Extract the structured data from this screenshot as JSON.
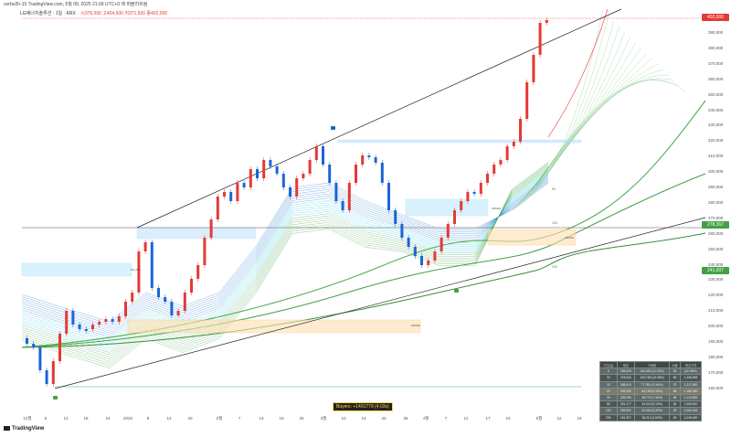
{
  "topbar": {
    "text": "ovrbo2h-15 TradingView.com, 5월 09, 2025 21:09 UTC+9 에 퍼블리쉬됨"
  },
  "legend": {
    "symbol": "LG에너지솔루션 · 1일 · KRX",
    "ohlc": "시376,000 고404,500 저371,500 종402,000"
  },
  "price_labels": {
    "last": "402,000",
    "ma_upper": "278,367",
    "ma_lower": "241,607"
  },
  "y_axis_ticks": [
    "390,000",
    "380,000",
    "370,000",
    "360,000",
    "350,000",
    "340,000",
    "330,000",
    "320,000",
    "310,000",
    "300,000",
    "290,000",
    "280,000",
    "270,000",
    "260,000",
    "250,000",
    "240,000",
    "230,000",
    "220,000",
    "210,000",
    "200,000",
    "190,000",
    "180,000",
    "170,000",
    "160,000"
  ],
  "x_axis_ticks": [
    "12월",
    "6",
    "12",
    "18",
    "24",
    "2025",
    "8",
    "14",
    "20",
    "2월",
    "7",
    "13",
    "19",
    "25",
    "3월",
    "10",
    "14",
    "20",
    "26",
    "4월",
    "7",
    "11",
    "17",
    "23",
    "5월",
    "12",
    "16",
    "22",
    "6월",
    "9",
    "13",
    "19"
  ],
  "annotations": {
    "buyers": "Buyers: +1401779 (4.03x)",
    "ma_labels": [
      "100",
      "200",
      "50"
    ],
    "box_labels": [
      "266000",
      "256000",
      "261,000",
      "296000",
      "256000"
    ]
  },
  "table": {
    "header": [
      "기간(일)",
      "평균",
      "거래량",
      "비율",
      "평균가격"
    ],
    "rows": [
      [
        "5",
        "394,625",
        "140,552 (21.03%)",
        "90",
        "(20.08%)"
      ],
      [
        "10",
        "378,640",
        "100,768 (15.08%)",
        "80",
        "1,208,595"
      ],
      [
        "15",
        "358,610",
        "77,780 (11.64%)",
        "70",
        "1,217,830"
      ],
      [
        "20",
        "343,050",
        "62,156 (9.30%)",
        "65",
        "1,185,480"
      ],
      [
        "30",
        "325,290",
        "48,774 (7.30%)",
        "55",
        "1,114,955"
      ],
      [
        "50",
        "301,177",
        "34,315 (5.13%)",
        "50",
        "1,083,510"
      ],
      [
        "100",
        "283,931",
        "22,040 (3.30%)",
        "45",
        "1,062,445"
      ],
      [
        "200",
        "261,907",
        "18,912 (2.83%)",
        "45",
        "1,045,490"
      ]
    ]
  },
  "brand": "TradingView",
  "colors": {
    "up": "#e53935",
    "down": "#1e63d6",
    "ma_green": "#388e3c",
    "last_price_bg": "#e53935",
    "ma_box_bg": "#43a047"
  }
}
